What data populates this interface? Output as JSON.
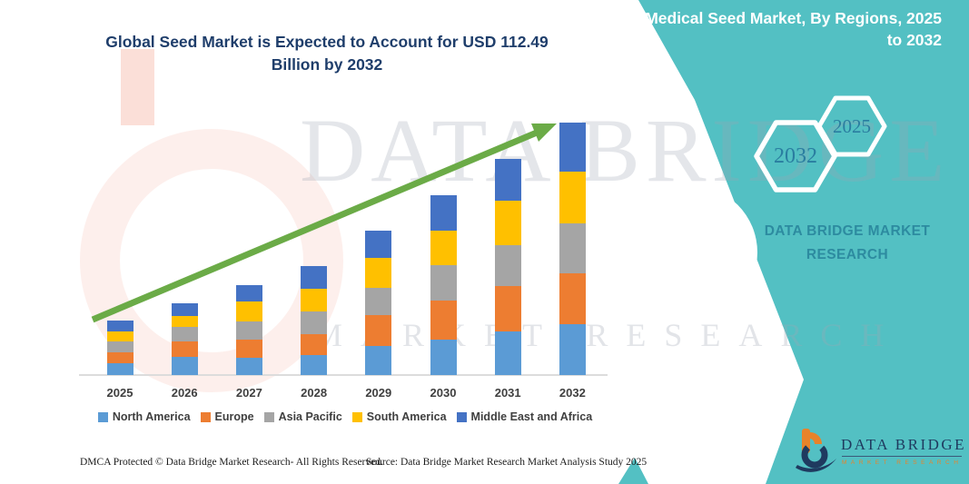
{
  "header": {
    "title": "Global Seed Market is Expected to Account for USD 112.49 Billion by 2032"
  },
  "side_panel": {
    "heading": "Medical Seed Market, By Regions, 2025 to 2032",
    "accent_color": "#53C0C3",
    "hexagons": [
      {
        "label": "2032"
      },
      {
        "label": "2025"
      }
    ],
    "brand_line1": "DATA BRIDGE MARKET",
    "brand_line2": "RESEARCH"
  },
  "watermark": {
    "line1": "DATA BRIDGE",
    "line2": "MARKET RESEARCH"
  },
  "chart_data": {
    "type": "bar",
    "stacked": true,
    "title": "Global Seed Market is Expected to Account for USD 112.49 Billion by 2032",
    "unit": "USD Billion",
    "categories": [
      "2025",
      "2026",
      "2027",
      "2028",
      "2029",
      "2030",
      "2031",
      "2032"
    ],
    "series": [
      {
        "name": "North America",
        "color": "#5B9BD5",
        "values": [
          5.3,
          8.2,
          7.7,
          9.0,
          13.1,
          15.8,
          19.6,
          22.5
        ]
      },
      {
        "name": "Europe",
        "color": "#ED7D31",
        "values": [
          4.9,
          7.0,
          8.1,
          9.4,
          13.5,
          17.6,
          20.3,
          22.9
        ]
      },
      {
        "name": "Asia Pacific",
        "color": "#A5A5A5",
        "values": [
          4.7,
          6.1,
          8.1,
          10.1,
          12.2,
          15.5,
          18.2,
          22.3
        ]
      },
      {
        "name": "South America",
        "color": "#FFC000",
        "values": [
          4.7,
          5.1,
          8.8,
          10.1,
          13.5,
          15.5,
          19.6,
          22.9
        ]
      },
      {
        "name": "Middle East and Africa",
        "color": "#4472C4",
        "values": [
          4.6,
          5.7,
          7.4,
          10.1,
          12.2,
          15.8,
          18.9,
          21.9
        ]
      }
    ],
    "totals_usd_billion": [
      24.2,
      32.1,
      40.1,
      48.7,
      64.5,
      80.2,
      96.6,
      112.49
    ],
    "highlight_value": "USD 112.49 Billion by 2032",
    "trend_arrow_color": "#6BAB47",
    "legend_position": "bottom",
    "grid": false
  },
  "footer": {
    "dmca": "DMCA Protected © Data Bridge Market Research-  All Rights Reserved.",
    "source": "Source: Data Bridge Market Research  Market Analysis Study 2025"
  },
  "logo": {
    "glyph": "data-bridge-b-mark",
    "name": "DATA BRIDGE",
    "sub": "MARKET RESEARCH"
  }
}
